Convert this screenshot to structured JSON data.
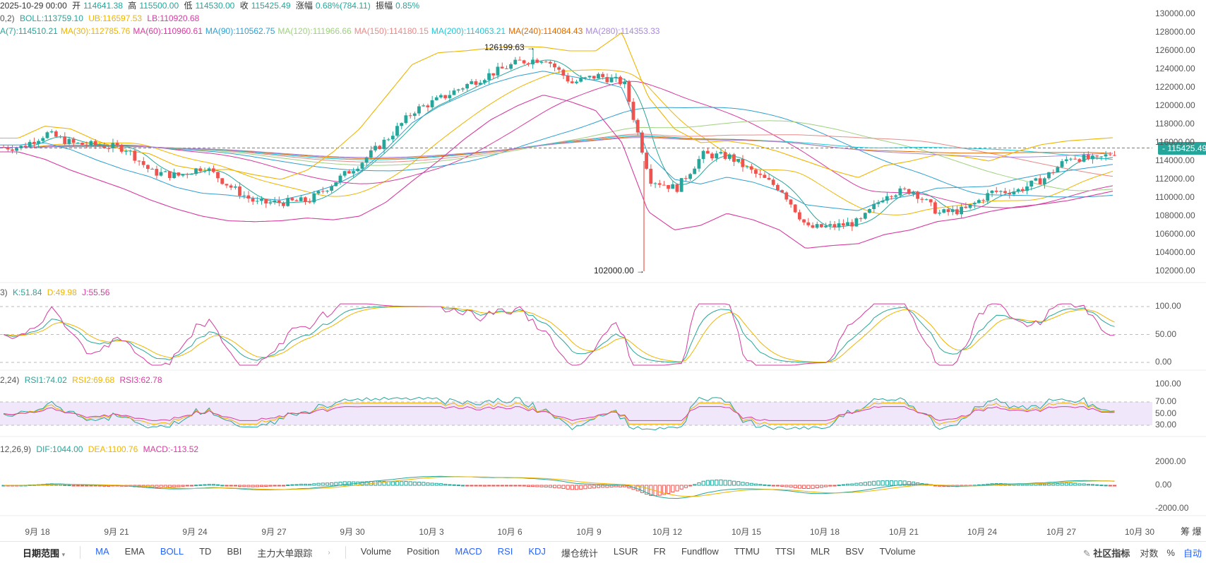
{
  "header": {
    "date": "2025-10-29 00:00",
    "open_label": "开",
    "open": "114641.38",
    "high_label": "高",
    "high": "115500.00",
    "low_label": "低",
    "low": "114530.00",
    "close_label": "收",
    "close": "115425.49",
    "change_label": "涨幅",
    "change": "0.68%(784.11)",
    "amplitude_label": "振幅",
    "amplitude": "0.85%"
  },
  "boll_legend": {
    "prefix": "0,2)",
    "boll": "BOLL:113759.10",
    "ub": "UB:116597.53",
    "lb": "LB:110920.68"
  },
  "ma_legend": [
    {
      "text": "A(7):114510.21",
      "color": "#26a69a"
    },
    {
      "text": "MA(30):112785.76",
      "color": "#f0b400"
    },
    {
      "text": "MA(60):110960.61",
      "color": "#d63ba0"
    },
    {
      "text": "MA(90):110562.75",
      "color": "#2f9fd1"
    },
    {
      "text": "MA(120):111966.66",
      "color": "#9fd080"
    },
    {
      "text": "MA(150):114180.15",
      "color": "#e88a8a"
    },
    {
      "text": "MA(200):114063.21",
      "color": "#1ec8d8"
    },
    {
      "text": "MA(240):114084.43",
      "color": "#e06a00"
    },
    {
      "text": "MA(280):114353.33",
      "color": "#a889e0"
    }
  ],
  "kdj_legend": {
    "prefix": "3)",
    "k": "K:51.84",
    "d": "D:49.98",
    "j": "J:55.56"
  },
  "rsi_legend": {
    "prefix": "2,24)",
    "rsi1": "RSI1:74.02",
    "rsi2": "RSI2:69.68",
    "rsi3": "RSI3:62.78"
  },
  "macd_legend": {
    "prefix": "12,26,9)",
    "dif": "DIF:1044.00",
    "dea": "DEA:1100.76",
    "macd": "MACD:-113.52"
  },
  "annotations": {
    "high": "126199.63 →",
    "low": "102000.00 →"
  },
  "last_price_tag": "- 115425.49",
  "price_axis": [
    "130000.00",
    "128000.00",
    "126000.00",
    "124000.00",
    "122000.00",
    "120000.00",
    "118000.00",
    "116000.00",
    "114000.00",
    "112000.00",
    "110000.00",
    "108000.00",
    "106000.00",
    "104000.00",
    "102000.00"
  ],
  "kdj_axis": [
    "100.00",
    "50.00",
    "0.00"
  ],
  "rsi_axis": [
    "100.00",
    "70.00",
    "50.00",
    "30.00"
  ],
  "macd_axis": [
    "2000.00",
    "0.00",
    "-2000.00"
  ],
  "date_axis": [
    "9月 18",
    "9月 21",
    "9月 24",
    "9月 27",
    "9月 30",
    "10月 3",
    "10月 6",
    "10月 9",
    "10月 12",
    "10月 15",
    "10月 18",
    "10月 21",
    "10月 24",
    "10月 27",
    "10月 30"
  ],
  "axis_corner": "筹 爆",
  "toolbar": {
    "date_range": "日期范围",
    "main_indicators": [
      "MA",
      "EMA",
      "BOLL",
      "TD",
      "BBI",
      "主力大单跟踪"
    ],
    "sub_indicators": [
      "Volume",
      "Position",
      "MACD",
      "RSI",
      "KDJ",
      "爆仓统计",
      "LSUR",
      "FR",
      "Fundflow",
      "TTMU",
      "TTSI",
      "MLR",
      "BSV",
      "TVolume"
    ],
    "community": "社区指标",
    "log": "对数",
    "percent": "%",
    "auto": "自动"
  },
  "colors": {
    "up": "#26a69a",
    "down": "#ef5350",
    "ub": "#f0b400",
    "lb": "#d63ba0",
    "boll_mid": "#2f9fd1"
  },
  "chart_data": {
    "type": "candlestick",
    "interval": "4h",
    "x_range": [
      "2025-09-17",
      "2025-10-30"
    ],
    "price_ylim": [
      101000,
      130500
    ],
    "last_price": 115425.49,
    "marked_high": 126199.63,
    "marked_low": 102000.0,
    "close_path": [
      {
        "date": "2025-09-17",
        "close": 115500
      },
      {
        "date": "2025-09-18",
        "close": 117000
      },
      {
        "date": "2025-09-19",
        "close": 115900
      },
      {
        "date": "2025-09-20",
        "close": 115700
      },
      {
        "date": "2025-09-21",
        "close": 115400
      },
      {
        "date": "2025-09-22",
        "close": 112800
      },
      {
        "date": "2025-09-23",
        "close": 112400
      },
      {
        "date": "2025-09-24",
        "close": 113400
      },
      {
        "date": "2025-09-25",
        "close": 111200
      },
      {
        "date": "2025-09-26",
        "close": 109400
      },
      {
        "date": "2025-09-27",
        "close": 109500
      },
      {
        "date": "2025-09-28",
        "close": 109700
      },
      {
        "date": "2025-09-29",
        "close": 111800
      },
      {
        "date": "2025-09-30",
        "close": 113900
      },
      {
        "date": "2025-10-01",
        "close": 116500
      },
      {
        "date": "2025-10-02",
        "close": 119500
      },
      {
        "date": "2025-10-03",
        "close": 120800
      },
      {
        "date": "2025-10-04",
        "close": 122300
      },
      {
        "date": "2025-10-05",
        "close": 123600
      },
      {
        "date": "2025-10-06",
        "close": 124800
      },
      {
        "date": "2025-10-07",
        "close": 125200
      },
      {
        "date": "2025-10-08",
        "close": 122500
      },
      {
        "date": "2025-10-09",
        "close": 123300
      },
      {
        "date": "2025-10-10",
        "close": 122500
      },
      {
        "date": "2025-10-11",
        "close": 112000
      },
      {
        "date": "2025-10-12",
        "close": 111000
      },
      {
        "date": "2025-10-13",
        "close": 114700
      },
      {
        "date": "2025-10-14",
        "close": 114500
      },
      {
        "date": "2025-10-15",
        "close": 112600
      },
      {
        "date": "2025-10-16",
        "close": 110900
      },
      {
        "date": "2025-10-17",
        "close": 106700
      },
      {
        "date": "2025-10-18",
        "close": 106900
      },
      {
        "date": "2025-10-19",
        "close": 107400
      },
      {
        "date": "2025-10-20",
        "close": 110500
      },
      {
        "date": "2025-10-21",
        "close": 110800
      },
      {
        "date": "2025-10-22",
        "close": 108300
      },
      {
        "date": "2025-10-23",
        "close": 108700
      },
      {
        "date": "2025-10-24",
        "close": 110600
      },
      {
        "date": "2025-10-25",
        "close": 110800
      },
      {
        "date": "2025-10-26",
        "close": 112100
      },
      {
        "date": "2025-10-27",
        "close": 114500
      },
      {
        "date": "2025-10-28",
        "close": 114100
      },
      {
        "date": "2025-10-29",
        "close": 115425
      }
    ],
    "ub_path": [
      116500,
      117800,
      117500,
      116200,
      115200,
      114800,
      113500,
      113000,
      113100,
      112500,
      112000,
      113000,
      115000,
      117500,
      121000,
      124500,
      125800,
      126000,
      126300,
      126500,
      126400,
      126000,
      126000,
      128000,
      121000,
      117500,
      116000,
      116200,
      115800,
      115000,
      114000,
      113000,
      112200,
      113500,
      114000,
      114700,
      114500,
      114000,
      115000,
      115800,
      116200,
      116400,
      116600
    ],
    "lb_path": [
      115000,
      114200,
      113000,
      112000,
      111000,
      109800,
      108800,
      108000,
      107500,
      107400,
      107500,
      107800,
      107600,
      108000,
      109500,
      111800,
      114000,
      116400,
      118500,
      120000,
      121200,
      120500,
      119500,
      116000,
      108500,
      106500,
      107000,
      108300,
      107600,
      106500,
      104500,
      104800,
      105000,
      106000,
      106500,
      107400,
      107800,
      108500,
      109000,
      109300,
      109700,
      110300,
      110900
    ],
    "kdj_axis_levels": [
      0,
      50,
      100
    ],
    "rsi_axis_levels": [
      30,
      50,
      70,
      100
    ],
    "rsi_band": [
      30,
      70
    ],
    "macd_axis_levels": [
      -2000,
      0,
      2000
    ],
    "indicator_values": {
      "BOLL": 113759.1,
      "UB": 116597.53,
      "LB": 110920.68,
      "MA7": 114510.21,
      "MA30": 112785.76,
      "MA60": 110960.61,
      "MA90": 110562.75,
      "MA120": 111966.66,
      "MA150": 114180.15,
      "MA200": 114063.21,
      "MA240": 114084.43,
      "MA280": 114353.33,
      "K": 51.84,
      "D": 49.98,
      "J": 55.56,
      "RSI1": 74.02,
      "RSI2": 69.68,
      "RSI3": 62.78,
      "DIF": 1044.0,
      "DEA": 1100.76,
      "MACD": -113.52
    }
  }
}
